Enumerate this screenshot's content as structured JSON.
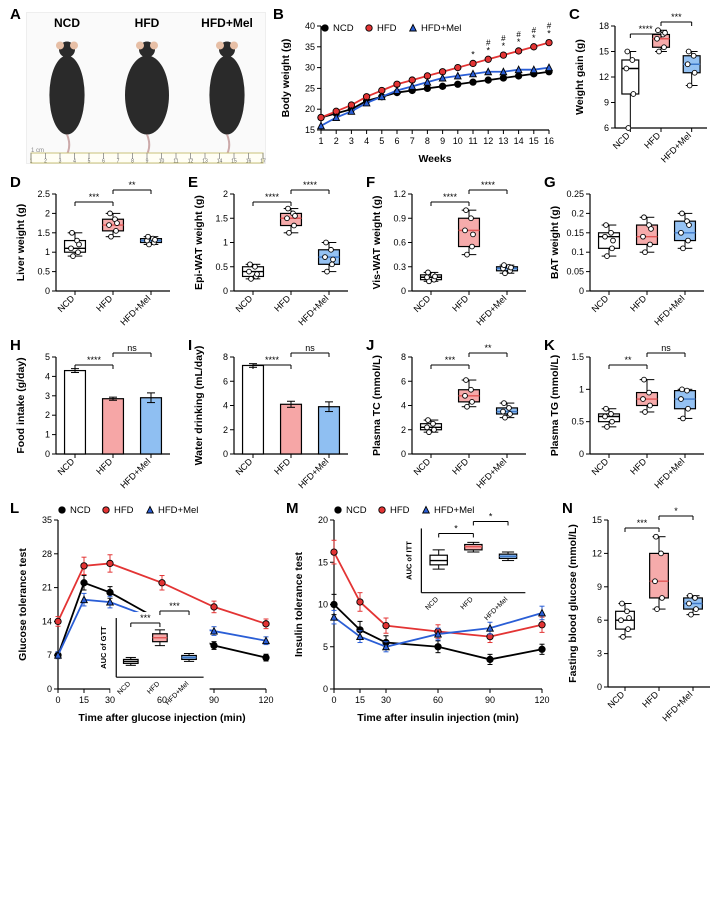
{
  "colors": {
    "ncd": "#ffffff",
    "ncd_stroke": "#000000",
    "hfd": "#f6a6a6",
    "hfd_stroke": "#e25656",
    "mel": "#8fbff2",
    "mel_stroke": "#3f79c9",
    "ncd_line": "#000000",
    "hfd_line": "#e33434",
    "mel_line": "#2a5ed6",
    "grid": "#ffffff",
    "bg": "#ffffff"
  },
  "groups": [
    "NCD",
    "HFD",
    "HFD+Mel"
  ],
  "panels": {
    "A": {
      "label": "A",
      "title_labels": [
        "NCD",
        "HFD",
        "HFD+Mel"
      ],
      "ruler_label": "cm",
      "ruler_range": [
        1,
        17
      ]
    },
    "B": {
      "label": "B",
      "type": "line",
      "x_label": "Weeks",
      "y_label": "Body weight (g)",
      "x": [
        1,
        2,
        3,
        4,
        5,
        6,
        7,
        8,
        9,
        10,
        11,
        12,
        13,
        14,
        15,
        16
      ],
      "ylim": [
        15,
        40
      ],
      "ytick_step": 5,
      "series": {
        "NCD": [
          18,
          19,
          20,
          22,
          23,
          24,
          24.5,
          25,
          25.5,
          26,
          26.5,
          27,
          27.5,
          28,
          28.5,
          29
        ],
        "HFD": [
          18,
          19.5,
          21,
          23,
          24.5,
          26,
          27,
          28,
          29,
          30,
          31,
          32,
          33,
          34,
          35,
          36
        ],
        "HFD+Mel": [
          16,
          18,
          19.5,
          21.5,
          23,
          24.5,
          25.5,
          26.5,
          27.5,
          28,
          28.5,
          29,
          29,
          29.5,
          29.5,
          30
        ]
      },
      "sig_star": [
        11,
        12,
        13,
        14,
        15,
        16
      ],
      "sig_hash": [
        12,
        13,
        14,
        15,
        16
      ],
      "legend": [
        "NCD",
        "HFD",
        "HFD+Mel"
      ]
    },
    "C": {
      "label": "C",
      "type": "box",
      "y_label": "Weight gain (g)",
      "ylim": [
        6,
        18
      ],
      "ytick_step": 3,
      "data": {
        "NCD": {
          "min": 6,
          "q1": 10,
          "med": 13,
          "q3": 14,
          "max": 15,
          "pts": [
            6,
            10,
            13,
            14,
            15
          ]
        },
        "HFD": {
          "min": 15,
          "q1": 15.5,
          "med": 16.5,
          "q3": 17,
          "max": 17.5,
          "pts": [
            15,
            15.5,
            16.5,
            17,
            17.5,
            17.2
          ]
        },
        "HFD+Mel": {
          "min": 11,
          "q1": 12.5,
          "med": 13.5,
          "q3": 14.5,
          "max": 15,
          "pts": [
            11,
            12.5,
            13.5,
            14.5,
            15
          ]
        }
      },
      "sig": [
        {
          "g": [
            0,
            1
          ],
          "txt": "****"
        },
        {
          "g": [
            1,
            2
          ],
          "txt": "***"
        }
      ]
    },
    "D": {
      "label": "D",
      "type": "box",
      "y_label": "Liver weight (g)",
      "ylim": [
        0,
        2.5
      ],
      "ytick_step": 0.5,
      "data": {
        "NCD": {
          "min": 0.9,
          "q1": 1.0,
          "med": 1.1,
          "q3": 1.3,
          "max": 1.5,
          "pts": [
            0.9,
            1.0,
            1.1,
            1.3,
            1.5,
            1.2
          ]
        },
        "HFD": {
          "min": 1.4,
          "q1": 1.55,
          "med": 1.7,
          "q3": 1.85,
          "max": 2.0,
          "pts": [
            1.4,
            1.55,
            1.7,
            1.85,
            2.0,
            1.75
          ]
        },
        "HFD+Mel": {
          "min": 1.2,
          "q1": 1.25,
          "med": 1.3,
          "q3": 1.35,
          "max": 1.4,
          "pts": [
            1.2,
            1.25,
            1.3,
            1.35,
            1.4,
            1.32
          ]
        }
      },
      "sig": [
        {
          "g": [
            0,
            1
          ],
          "txt": "***"
        },
        {
          "g": [
            1,
            2
          ],
          "txt": "**"
        }
      ]
    },
    "E": {
      "label": "E",
      "type": "box",
      "y_label": "Epi-WAT weight (g)",
      "ylim": [
        0,
        2.0
      ],
      "ytick_step": 0.5,
      "data": {
        "NCD": {
          "min": 0.25,
          "q1": 0.3,
          "med": 0.4,
          "q3": 0.5,
          "max": 0.55,
          "pts": [
            0.25,
            0.3,
            0.4,
            0.5,
            0.55,
            0.35
          ]
        },
        "HFD": {
          "min": 1.2,
          "q1": 1.35,
          "med": 1.5,
          "q3": 1.6,
          "max": 1.7,
          "pts": [
            1.2,
            1.35,
            1.5,
            1.6,
            1.7,
            1.55
          ]
        },
        "HFD+Mel": {
          "min": 0.4,
          "q1": 0.55,
          "med": 0.7,
          "q3": 0.85,
          "max": 1.0,
          "pts": [
            0.4,
            0.55,
            0.7,
            0.85,
            1.0,
            0.65
          ]
        }
      },
      "sig": [
        {
          "g": [
            0,
            1
          ],
          "txt": "****"
        },
        {
          "g": [
            1,
            2
          ],
          "txt": "****"
        }
      ]
    },
    "F": {
      "label": "F",
      "type": "box",
      "y_label": "Vis-WAT weight (g)",
      "ylim": [
        0,
        1.2
      ],
      "ytick_step": 0.3,
      "data": {
        "NCD": {
          "min": 0.12,
          "q1": 0.14,
          "med": 0.17,
          "q3": 0.2,
          "max": 0.23,
          "pts": [
            0.12,
            0.14,
            0.17,
            0.2,
            0.23,
            0.18
          ]
        },
        "HFD": {
          "min": 0.45,
          "q1": 0.55,
          "med": 0.75,
          "q3": 0.9,
          "max": 1.0,
          "pts": [
            0.45,
            0.55,
            0.75,
            0.9,
            1.0,
            0.7
          ]
        },
        "HFD+Mel": {
          "min": 0.22,
          "q1": 0.25,
          "med": 0.28,
          "q3": 0.3,
          "max": 0.32,
          "pts": [
            0.22,
            0.25,
            0.28,
            0.3,
            0.32,
            0.29
          ]
        }
      },
      "sig": [
        {
          "g": [
            0,
            1
          ],
          "txt": "****"
        },
        {
          "g": [
            1,
            2
          ],
          "txt": "****"
        }
      ]
    },
    "G": {
      "label": "G",
      "type": "box",
      "y_label": "BAT weight (g)",
      "ylim": [
        0,
        0.25
      ],
      "ytick_step": 0.05,
      "data": {
        "NCD": {
          "min": 0.09,
          "q1": 0.11,
          "med": 0.14,
          "q3": 0.15,
          "max": 0.17,
          "pts": [
            0.09,
            0.11,
            0.14,
            0.15,
            0.17,
            0.13
          ]
        },
        "HFD": {
          "min": 0.1,
          "q1": 0.12,
          "med": 0.14,
          "q3": 0.17,
          "max": 0.19,
          "pts": [
            0.1,
            0.12,
            0.14,
            0.17,
            0.19,
            0.16
          ]
        },
        "HFD+Mel": {
          "min": 0.11,
          "q1": 0.13,
          "med": 0.15,
          "q3": 0.18,
          "max": 0.2,
          "pts": [
            0.11,
            0.13,
            0.15,
            0.18,
            0.2,
            0.17
          ]
        }
      },
      "sig": []
    },
    "H": {
      "label": "H",
      "type": "bar",
      "y_label": "Food intake (g/day)",
      "ylim": [
        0,
        5
      ],
      "ytick_step": 1,
      "data": {
        "NCD": {
          "mean": 4.3,
          "err": 0.1
        },
        "HFD": {
          "mean": 2.85,
          "err": 0.08
        },
        "HFD+Mel": {
          "mean": 2.9,
          "err": 0.25
        }
      },
      "sig": [
        {
          "g": [
            0,
            1
          ],
          "txt": "****"
        },
        {
          "g": [
            1,
            2
          ],
          "txt": "ns"
        }
      ]
    },
    "I": {
      "label": "I",
      "type": "bar",
      "y_label": "Water drinking (mL/day)",
      "ylim": [
        0,
        8
      ],
      "ytick_step": 2,
      "data": {
        "NCD": {
          "mean": 7.3,
          "err": 0.15
        },
        "HFD": {
          "mean": 4.1,
          "err": 0.25
        },
        "HFD+Mel": {
          "mean": 3.9,
          "err": 0.4
        }
      },
      "sig": [
        {
          "g": [
            0,
            1
          ],
          "txt": "****"
        },
        {
          "g": [
            1,
            2
          ],
          "txt": "ns"
        }
      ]
    },
    "J": {
      "label": "J",
      "type": "box",
      "y_label": "Plasma TC (mmol/L)",
      "ylim": [
        0,
        8
      ],
      "ytick_step": 2,
      "data": {
        "NCD": {
          "min": 1.8,
          "q1": 2.0,
          "med": 2.2,
          "q3": 2.5,
          "max": 2.8,
          "pts": [
            1.8,
            2.0,
            2.2,
            2.5,
            2.8
          ]
        },
        "HFD": {
          "min": 3.9,
          "q1": 4.3,
          "med": 4.8,
          "q3": 5.3,
          "max": 6.1,
          "pts": [
            3.9,
            4.3,
            4.8,
            5.3,
            6.1
          ]
        },
        "HFD+Mel": {
          "min": 3.0,
          "q1": 3.3,
          "med": 3.5,
          "q3": 3.8,
          "max": 4.2,
          "pts": [
            3.0,
            3.3,
            3.5,
            3.8,
            4.2
          ]
        }
      },
      "sig": [
        {
          "g": [
            0,
            1
          ],
          "txt": "***"
        },
        {
          "g": [
            1,
            2
          ],
          "txt": "**"
        }
      ]
    },
    "K": {
      "label": "K",
      "type": "box",
      "y_label": "Plasma TG (mmol/L)",
      "ylim": [
        0,
        1.5
      ],
      "ytick_step": 0.5,
      "data": {
        "NCD": {
          "min": 0.42,
          "q1": 0.5,
          "med": 0.58,
          "q3": 0.62,
          "max": 0.7,
          "pts": [
            0.42,
            0.5,
            0.58,
            0.62,
            0.7
          ]
        },
        "HFD": {
          "min": 0.65,
          "q1": 0.75,
          "med": 0.85,
          "q3": 0.95,
          "max": 1.15,
          "pts": [
            0.65,
            0.75,
            0.85,
            0.95,
            1.15
          ]
        },
        "HFD+Mel": {
          "min": 0.55,
          "q1": 0.7,
          "med": 0.85,
          "q3": 0.98,
          "max": 1.0,
          "pts": [
            0.55,
            0.7,
            0.85,
            0.98,
            1.0
          ]
        }
      },
      "sig": [
        {
          "g": [
            0,
            1
          ],
          "txt": "**"
        },
        {
          "g": [
            1,
            2
          ],
          "txt": "ns"
        }
      ]
    },
    "L": {
      "label": "L",
      "type": "line",
      "y_label": "Glucose tolerance test",
      "x_label": "Time after glucose injection (min)",
      "x": [
        0,
        15,
        30,
        60,
        90,
        120
      ],
      "ylim": [
        0,
        35
      ],
      "ytick_step": 7,
      "series": {
        "NCD": [
          7,
          22,
          20,
          14,
          9,
          6.5
        ],
        "HFD": [
          14,
          25.5,
          26,
          22,
          17,
          13.5
        ],
        "HFD+Mel": [
          7,
          18.5,
          18,
          14,
          12,
          10
        ]
      },
      "err": {
        "NCD": [
          0.7,
          1.5,
          1.2,
          1,
          0.8,
          0.7
        ],
        "HFD": [
          1,
          1.8,
          1.8,
          1.5,
          1.2,
          1
        ],
        "HFD+Mel": [
          0.7,
          1.3,
          1.2,
          1,
          0.9,
          0.8
        ]
      },
      "inset": {
        "y_label": "AUC of GTT",
        "ylim": [
          0,
          30
        ],
        "data": {
          "NCD": {
            "min": 6,
            "q1": 7,
            "med": 8,
            "q3": 9,
            "max": 10
          },
          "HFD": {
            "min": 16,
            "q1": 18,
            "med": 20,
            "q3": 22,
            "max": 24
          },
          "HFD+Mel": {
            "min": 8,
            "q1": 9,
            "med": 10,
            "q3": 11,
            "max": 12
          }
        },
        "sig": [
          {
            "g": [
              0,
              1
            ],
            "txt": "***"
          },
          {
            "g": [
              1,
              2
            ],
            "txt": "***"
          }
        ]
      }
    },
    "M": {
      "label": "M",
      "type": "line",
      "y_label": "Insulin tolerance test",
      "x_label": "Time after insulin injection (min)",
      "x": [
        0,
        15,
        30,
        60,
        90,
        120
      ],
      "ylim": [
        0,
        20
      ],
      "ytick_step": 5,
      "series": {
        "NCD": [
          10,
          7,
          5.5,
          5,
          3.5,
          4.7
        ],
        "HFD": [
          16.2,
          10.3,
          7.5,
          6.8,
          6.2,
          7.6
        ],
        "HFD+Mel": [
          8.5,
          6.2,
          5,
          6.5,
          7.2,
          9
        ]
      },
      "err": {
        "NCD": [
          1.2,
          1,
          0.8,
          0.7,
          0.6,
          0.6
        ],
        "HFD": [
          1.4,
          1.1,
          0.9,
          0.8,
          0.7,
          0.9
        ],
        "HFD+Mel": [
          0.8,
          0.7,
          0.6,
          0.7,
          0.7,
          0.8
        ]
      },
      "inset": {
        "y_label": "AUC of ITT",
        "ylim": [
          0,
          60
        ],
        "data": {
          "NCD": {
            "min": 22,
            "q1": 26,
            "med": 30,
            "q3": 35,
            "max": 40
          },
          "HFD": {
            "min": 38,
            "q1": 40,
            "med": 43,
            "q3": 45,
            "max": 47
          },
          "HFD+Mel": {
            "min": 30,
            "q1": 32,
            "med": 34,
            "q3": 36,
            "max": 38
          }
        },
        "sig": [
          {
            "g": [
              0,
              1
            ],
            "txt": "*"
          },
          {
            "g": [
              1,
              2
            ],
            "txt": "*"
          }
        ]
      }
    },
    "N": {
      "label": "N",
      "type": "box",
      "y_label": "Fasting blood glucose (mmol/L)",
      "ylim": [
        0,
        15
      ],
      "ytick_step": 3,
      "data": {
        "NCD": {
          "min": 4.5,
          "q1": 5.2,
          "med": 6,
          "q3": 6.8,
          "max": 7.5,
          "pts": [
            4.5,
            5.2,
            6,
            6.8,
            7.5,
            6.2
          ]
        },
        "HFD": {
          "min": 7,
          "q1": 8,
          "med": 9.5,
          "q3": 12,
          "max": 13.5,
          "pts": [
            7,
            8,
            9.5,
            12,
            13.5
          ]
        },
        "HFD+Mel": {
          "min": 6.5,
          "q1": 7,
          "med": 7.5,
          "q3": 8,
          "max": 8.2,
          "pts": [
            6.5,
            7,
            7.5,
            8,
            8.2
          ]
        }
      },
      "sig": [
        {
          "g": [
            0,
            1
          ],
          "txt": "***"
        },
        {
          "g": [
            1,
            2
          ],
          "txt": "*"
        }
      ]
    }
  },
  "typography": {
    "label_fontsize": 15,
    "axis_fontsize": 10.5,
    "tick_fontsize": 9
  }
}
